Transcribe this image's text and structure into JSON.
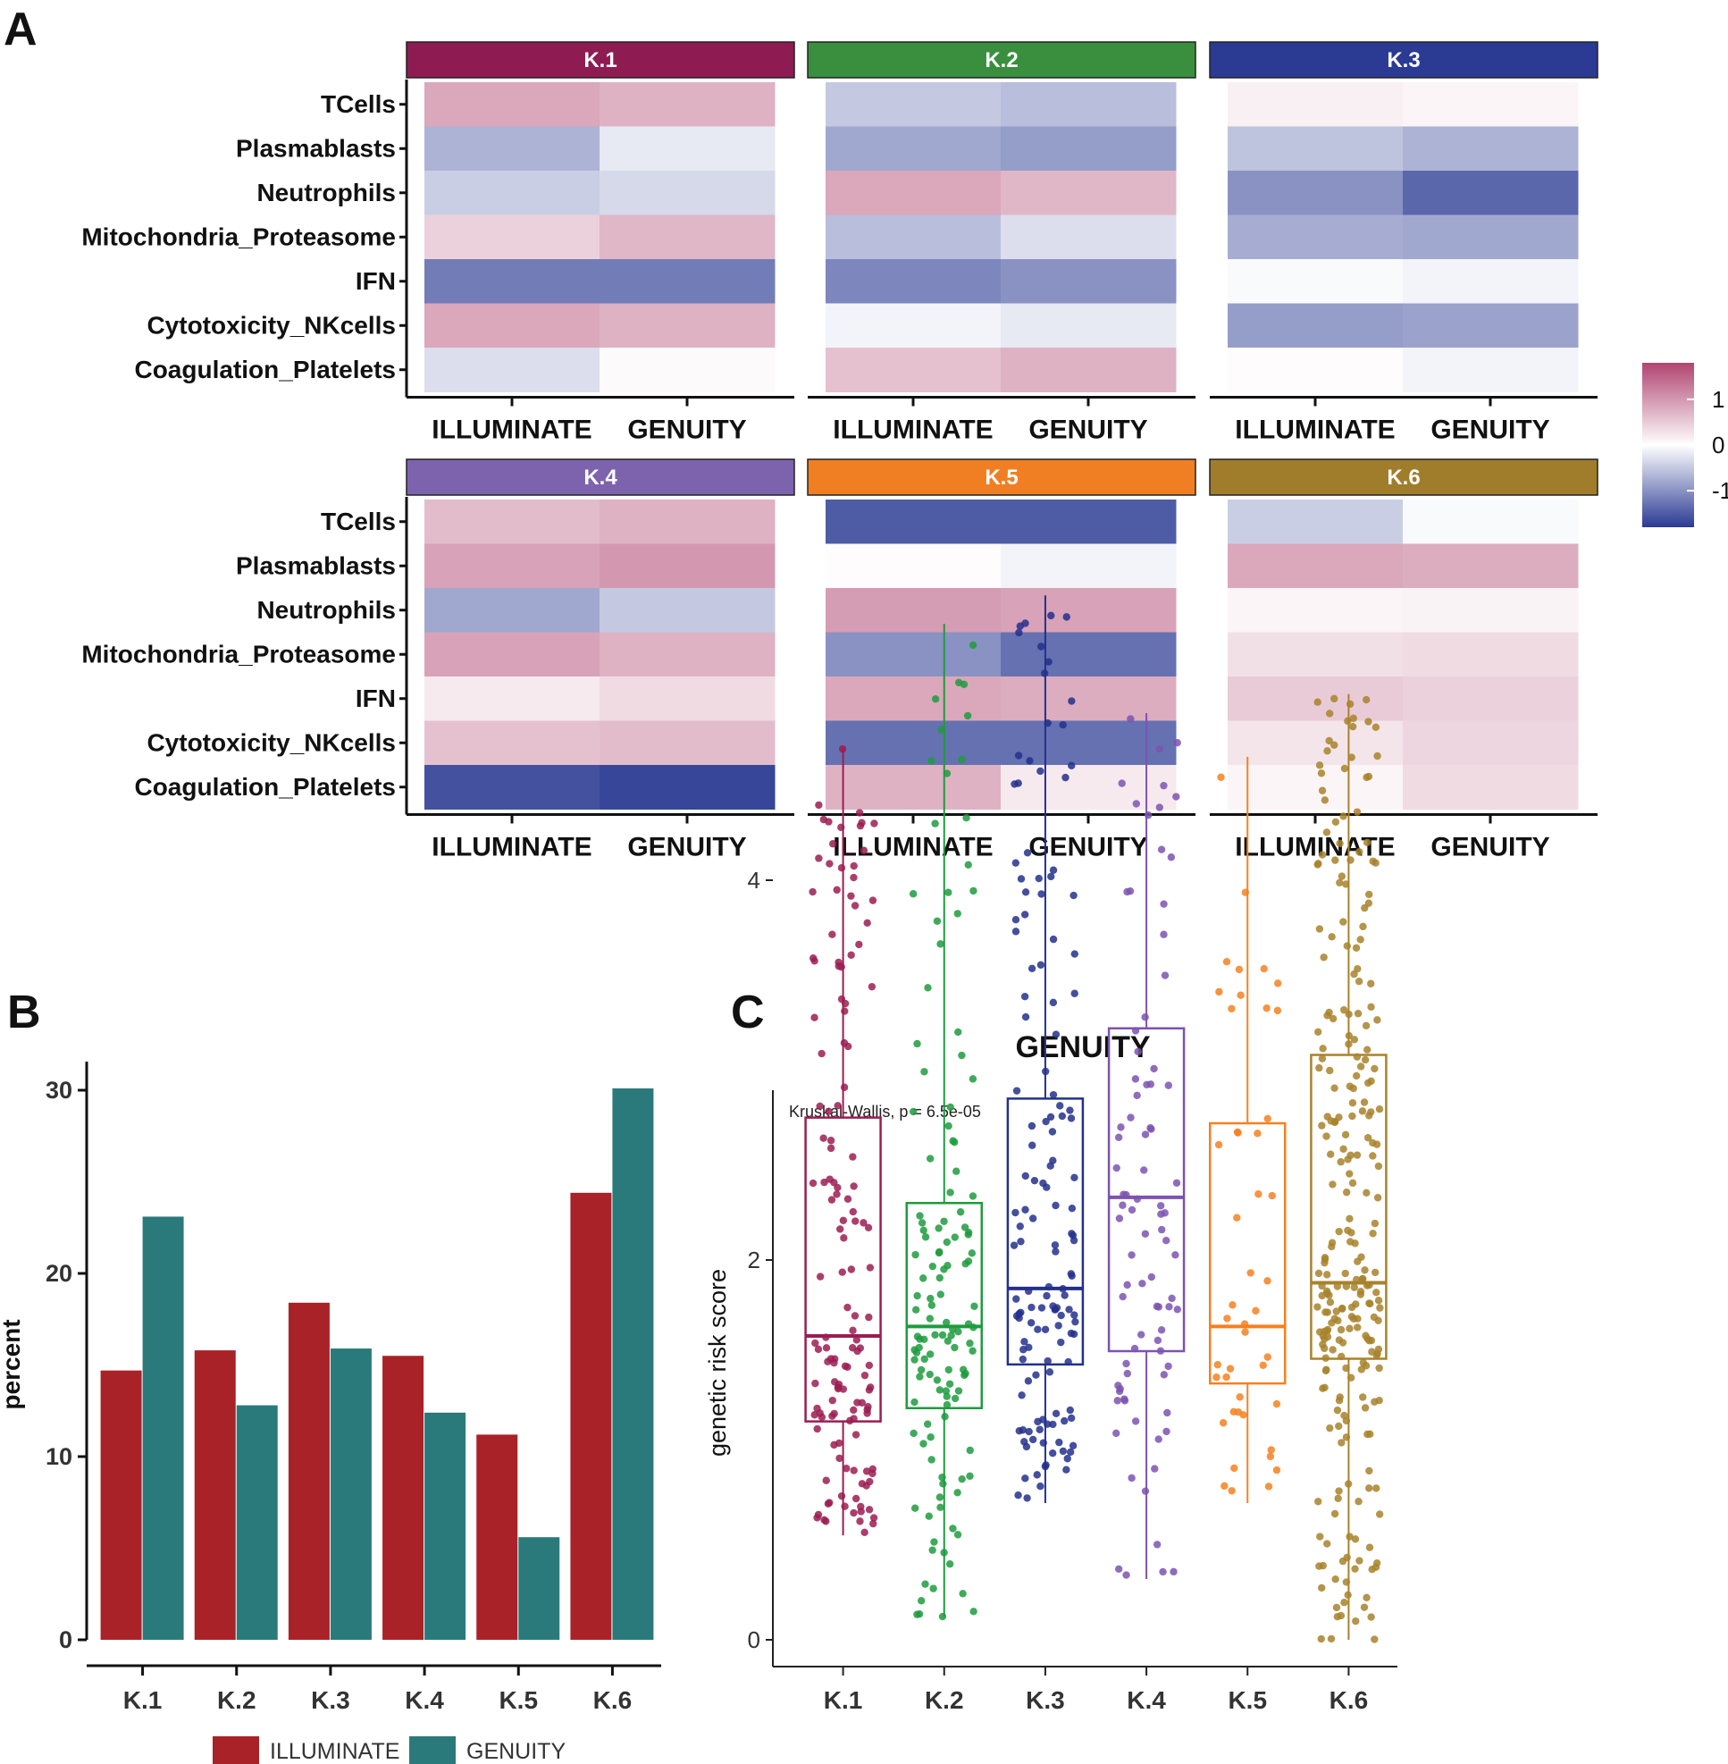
{
  "panel_labels": {
    "a": "A",
    "b": "B",
    "c": "C"
  },
  "chart_data": [
    {
      "type": "heatmap",
      "facets": [
        {
          "label": "K.1",
          "color": "#8e1c52",
          "values": [
            [
              0.85,
              0.75
            ],
            [
              -0.7,
              -0.2
            ],
            [
              -0.45,
              -0.35
            ],
            [
              0.45,
              0.7
            ],
            [
              -1.2,
              -1.2
            ],
            [
              0.85,
              0.75
            ],
            [
              -0.3,
              0.05
            ]
          ]
        },
        {
          "label": "K.2",
          "color": "#3a8f3e",
          "values": [
            [
              -0.5,
              -0.6
            ],
            [
              -0.8,
              -0.9
            ],
            [
              0.85,
              0.7
            ],
            [
              -0.6,
              -0.3
            ],
            [
              -1.1,
              -1.0
            ],
            [
              -0.1,
              -0.2
            ],
            [
              0.6,
              0.75
            ]
          ]
        },
        {
          "label": "K.3",
          "color": "#2b3b93",
          "values": [
            [
              0.15,
              0.1
            ],
            [
              -0.55,
              -0.7
            ],
            [
              -1.0,
              -1.4
            ],
            [
              -0.75,
              -0.8
            ],
            [
              -0.05,
              -0.1
            ],
            [
              -0.9,
              -0.85
            ],
            [
              0.03,
              -0.1
            ]
          ]
        },
        {
          "label": "K.4",
          "color": "#7d63ae",
          "values": [
            [
              0.65,
              0.75
            ],
            [
              0.9,
              1.0
            ],
            [
              -0.8,
              -0.5
            ],
            [
              0.9,
              0.75
            ],
            [
              0.2,
              0.35
            ],
            [
              0.6,
              0.65
            ],
            [
              -1.6,
              -1.7
            ]
          ]
        },
        {
          "label": "K.5",
          "color": "#f07f23",
          "values": [
            [
              -1.5,
              -1.5
            ],
            [
              0.03,
              -0.1
            ],
            [
              0.95,
              0.9
            ],
            [
              -1.0,
              -1.3
            ],
            [
              0.85,
              0.8
            ],
            [
              -1.3,
              -1.3
            ],
            [
              0.75,
              0.2
            ]
          ]
        },
        {
          "label": "K.6",
          "color": "#a07d2a",
          "values": [
            [
              -0.45,
              -0.05
            ],
            [
              0.85,
              0.8
            ],
            [
              0.1,
              0.12
            ],
            [
              0.3,
              0.35
            ],
            [
              0.5,
              0.45
            ],
            [
              0.25,
              0.4
            ],
            [
              0.1,
              0.35
            ]
          ]
        }
      ],
      "rows": [
        "TCells",
        "Plasmablasts",
        "Neutrophils",
        "Mitochondria_Proteasome",
        "IFN",
        "Cytotoxicity_NKcells",
        "Coagulation_Platelets"
      ],
      "columns": [
        "ILLUMINATE",
        "GENUITY"
      ],
      "colorbar": {
        "ticks": [
          "1",
          "0",
          "-1"
        ],
        "range": [
          -1.8,
          1.8
        ],
        "low": "#2b3b93",
        "mid": "#ffffff",
        "high": "#b04570"
      }
    },
    {
      "type": "bar",
      "categories": [
        "K.1",
        "K.2",
        "K.3",
        "K.4",
        "K.5",
        "K.6"
      ],
      "series": [
        {
          "name": "ILLUMINATE",
          "color": "#a82227",
          "values": [
            14.7,
            15.8,
            18.4,
            15.5,
            11.2,
            24.4
          ]
        },
        {
          "name": "GENUITY",
          "color": "#2a7a7b",
          "values": [
            23.1,
            12.8,
            15.9,
            12.4,
            5.6,
            30.1
          ]
        }
      ],
      "ylabel": "percent",
      "ylim": [
        0,
        30
      ],
      "yticks": [
        "0",
        "10",
        "20",
        "30"
      ],
      "legend": "bottom"
    },
    {
      "type": "box",
      "title": "GENUITY",
      "annotation": "Kruskal-Wallis, p = 6.5e-05",
      "ylabel": "genetic risk score",
      "ylim": [
        0,
        5.6
      ],
      "yticks": [
        "0",
        "2",
        "4"
      ],
      "categories": [
        "K.1",
        "K.2",
        "K.3",
        "K.4",
        "K.5",
        "K.6"
      ],
      "boxes": [
        {
          "label": "K.1",
          "color": "#9b1d52",
          "min": 0.55,
          "q1": 1.15,
          "median": 1.6,
          "q3": 2.75,
          "max": 4.7,
          "n": 140
        },
        {
          "label": "K.2",
          "color": "#1f9b3e",
          "min": 0.12,
          "q1": 1.22,
          "median": 1.65,
          "q3": 2.3,
          "max": 5.35,
          "n": 130
        },
        {
          "label": "K.3",
          "color": "#23308c",
          "min": 0.72,
          "q1": 1.45,
          "median": 1.85,
          "q3": 2.85,
          "max": 5.5,
          "n": 140
        },
        {
          "label": "K.4",
          "color": "#7d53b0",
          "min": 0.32,
          "q1": 1.52,
          "median": 2.33,
          "q3": 3.22,
          "max": 4.88,
          "n": 85
        },
        {
          "label": "K.5",
          "color": "#f48120",
          "min": 0.72,
          "q1": 1.35,
          "median": 1.65,
          "q3": 2.72,
          "max": 4.65,
          "n": 45
        },
        {
          "label": "K.6",
          "color": "#a8822c",
          "min": 0.0,
          "q1": 1.48,
          "median": 1.88,
          "q3": 3.08,
          "max": 4.98,
          "n": 260
        }
      ]
    }
  ]
}
